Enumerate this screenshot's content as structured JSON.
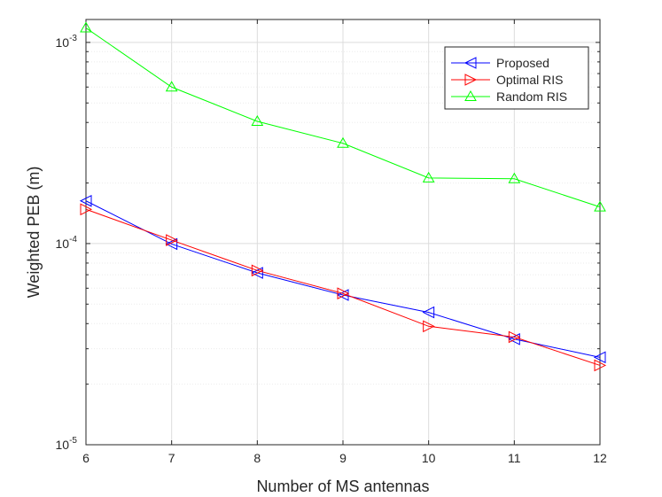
{
  "chart_data": {
    "type": "line",
    "title": "",
    "xlabel": "Number of MS antennas",
    "ylabel": "Weighted PEB (m)",
    "x": [
      6,
      7,
      8,
      9,
      10,
      11,
      12
    ],
    "xlim": [
      6,
      12
    ],
    "ylim": [
      1e-05,
      0.0013
    ],
    "yscale": "log",
    "grid": true,
    "legend_position": "top-right",
    "x_ticks": [
      "6",
      "7",
      "8",
      "9",
      "10",
      "11",
      "12"
    ],
    "y_ticks": [
      {
        "base": "10",
        "exp": "-5",
        "value": 1e-05
      },
      {
        "base": "10",
        "exp": "-4",
        "value": 0.0001
      },
      {
        "base": "10",
        "exp": "-3",
        "value": 0.001
      }
    ],
    "series": [
      {
        "name": "Proposed",
        "color": "#0000ff",
        "marker": "triangle-left",
        "values": [
          0.000163,
          9.95e-05,
          7.15e-05,
          5.55e-05,
          4.55e-05,
          3.35e-05,
          2.72e-05
        ]
      },
      {
        "name": "Optimal RIS",
        "color": "#ff0000",
        "marker": "triangle-right",
        "values": [
          0.000148,
          0.000104,
          7.35e-05,
          5.65e-05,
          3.88e-05,
          3.43e-05,
          2.48e-05
        ]
      },
      {
        "name": "Random RIS",
        "color": "#00ff00",
        "marker": "triangle-up",
        "values": [
          0.00118,
          0.0006,
          0.000405,
          0.000315,
          0.000212,
          0.00021,
          0.000152
        ]
      }
    ]
  }
}
